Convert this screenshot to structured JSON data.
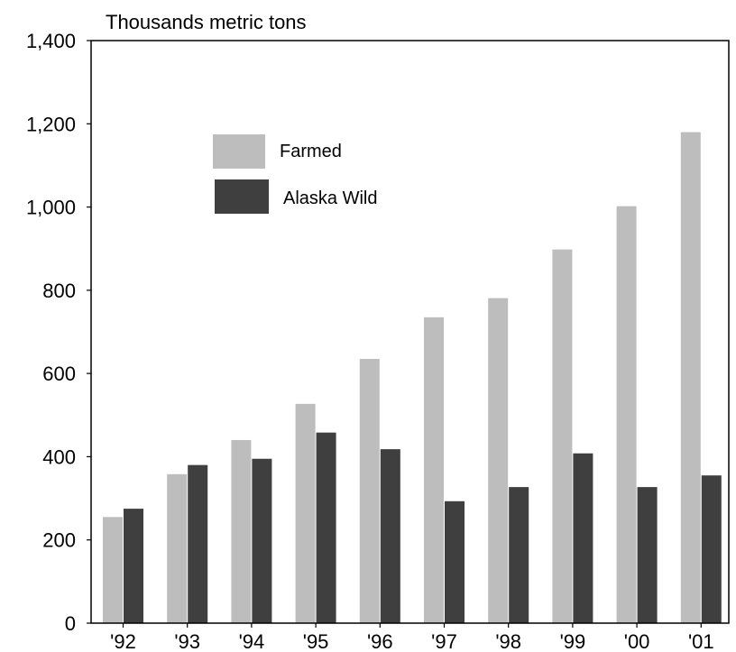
{
  "chart_data": {
    "type": "bar",
    "ylabel": "Thousands metric tons",
    "xlabel": "",
    "ylim": [
      0,
      1400
    ],
    "yticks": [
      0,
      200,
      400,
      600,
      800,
      1000,
      1200,
      1400
    ],
    "ytick_labels": [
      "0",
      "200",
      "400",
      "600",
      "800",
      "1,000",
      "1,200",
      "1,400"
    ],
    "categories": [
      "'92",
      "'93",
      "'94",
      "'95",
      "'96",
      "'97",
      "'98",
      "'99",
      "'00",
      "'01"
    ],
    "series": [
      {
        "name": "Farmed",
        "color": "#bdbdbd",
        "values": [
          255,
          358,
          440,
          527,
          635,
          735,
          781,
          898,
          1002,
          1180
        ]
      },
      {
        "name": "Alaska Wild",
        "color": "#3f3f3f",
        "values": [
          275,
          380,
          395,
          458,
          418,
          293,
          327,
          408,
          327,
          355
        ]
      }
    ],
    "legend_position": "top-left inside plot",
    "grid": false
  }
}
